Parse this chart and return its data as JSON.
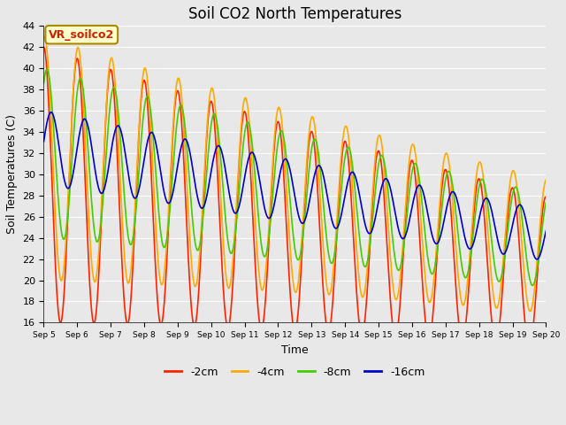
{
  "title": "Soil CO2 North Temperatures",
  "xlabel": "Time",
  "ylabel": "Soil Temperatures (C)",
  "ylim": [
    16,
    44
  ],
  "annotation_text": "VR_soilco2",
  "annotation_color": "#cc2200",
  "annotation_bg": "#ffffcc",
  "annotation_border": "#aa8800",
  "bg_color": "#e8e8e8",
  "grid_color": "#ffffff",
  "series": [
    {
      "label": "-2cm",
      "color": "#ff2200",
      "lw": 1.2
    },
    {
      "label": "-4cm",
      "color": "#ffaa00",
      "lw": 1.2
    },
    {
      "label": "-8cm",
      "color": "#44cc00",
      "lw": 1.2
    },
    {
      "label": "-16cm",
      "color": "#0000cc",
      "lw": 1.2
    }
  ],
  "xtick_labels": [
    "Sep 5",
    "Sep 6",
    "Sep 7",
    "Sep 8",
    "Sep 9",
    "Sep 10",
    "Sep 11",
    "Sep 12",
    "Sep 13",
    "Sep 14",
    "Sep 15",
    "Sep 16",
    "Sep 17",
    "Sep 18",
    "Sep 19",
    "Sep 20"
  ],
  "ytick_values": [
    16,
    18,
    20,
    22,
    24,
    26,
    28,
    30,
    32,
    34,
    36,
    38,
    40,
    42,
    44
  ],
  "legend_ncol": 4
}
